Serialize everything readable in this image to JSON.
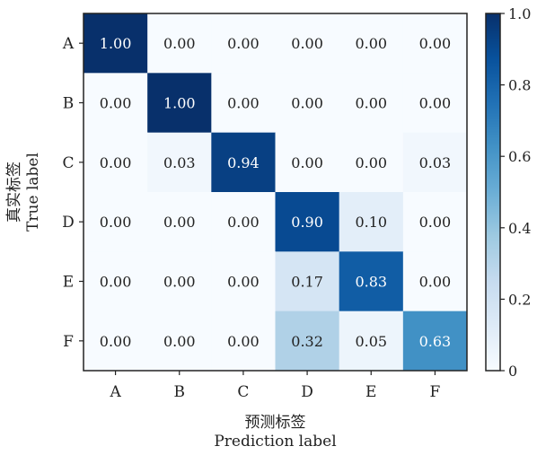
{
  "chart_data": {
    "type": "heatmap",
    "title": "",
    "ylabel_cn": "真实标签",
    "ylabel": "True label",
    "xlabel_cn": "预测标签",
    "xlabel": "Prediction label",
    "row_labels": [
      "A",
      "B",
      "C",
      "D",
      "E",
      "F"
    ],
    "col_labels": [
      "A",
      "B",
      "C",
      "D",
      "E",
      "F"
    ],
    "values": [
      [
        1.0,
        0.0,
        0.0,
        0.0,
        0.0,
        0.0
      ],
      [
        0.0,
        1.0,
        0.0,
        0.0,
        0.0,
        0.0
      ],
      [
        0.0,
        0.03,
        0.94,
        0.0,
        0.0,
        0.03
      ],
      [
        0.0,
        0.0,
        0.0,
        0.9,
        0.1,
        0.0
      ],
      [
        0.0,
        0.0,
        0.0,
        0.17,
        0.83,
        0.0
      ],
      [
        0.0,
        0.0,
        0.0,
        0.32,
        0.05,
        0.63
      ]
    ],
    "value_format": "0.00",
    "colorbar": {
      "range": [
        0,
        1.0
      ],
      "ticks": [
        0,
        0.2,
        0.4,
        0.6,
        0.8,
        1.0
      ],
      "tick_labels": [
        "0",
        "0.2",
        "0.4",
        "0.6",
        "0.8",
        "1.0"
      ],
      "colormap": "Blues",
      "low_color": "#f7fbff",
      "high_color": "#08306b"
    }
  }
}
